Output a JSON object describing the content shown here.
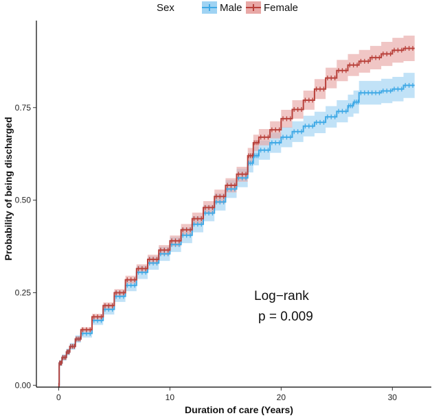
{
  "chart_data": {
    "type": "line",
    "subtype": "kaplan-meier cumulative incidence",
    "title": "",
    "xlabel": "Duration of care (Years)",
    "ylabel": "Probability of being discharged",
    "xlim": [
      -2,
      33.5
    ],
    "ylim": [
      -0.005,
      0.985
    ],
    "x_ticks": [
      0,
      10,
      20,
      30
    ],
    "x_tick_labels": [
      "0",
      "10",
      "20",
      "30"
    ],
    "y_ticks": [
      0.0,
      0.25,
      0.5,
      0.75
    ],
    "y_tick_labels": [
      "0.00",
      "0.25",
      "0.50",
      "0.75"
    ],
    "grid": false,
    "legend": {
      "title": "Sex",
      "position": "top",
      "entries": [
        "Male",
        "Female"
      ]
    },
    "annotations": {
      "line1": "Log−rank",
      "line2": "p = 0.009"
    },
    "series": [
      {
        "name": "Male",
        "color": "#3fa9e6",
        "band_color": "#9fd3f3",
        "x": [
          0,
          0.05,
          0.3,
          0.7,
          1.0,
          1.5,
          2,
          3,
          4,
          5,
          6,
          7,
          8,
          9,
          10,
          11,
          12,
          13,
          14,
          15,
          16,
          17,
          17.5,
          18,
          19,
          20,
          21,
          22,
          23,
          24,
          25,
          26,
          26.5,
          27,
          28,
          29,
          30,
          31,
          32
        ],
        "y": [
          0.0,
          0.06,
          0.075,
          0.09,
          0.105,
          0.125,
          0.14,
          0.175,
          0.205,
          0.24,
          0.27,
          0.305,
          0.33,
          0.355,
          0.38,
          0.405,
          0.435,
          0.465,
          0.495,
          0.53,
          0.56,
          0.6,
          0.62,
          0.635,
          0.655,
          0.67,
          0.685,
          0.7,
          0.71,
          0.725,
          0.74,
          0.755,
          0.765,
          0.79,
          0.79,
          0.795,
          0.8,
          0.81,
          0.81
        ],
        "ci_width": [
          0.0,
          0.008,
          0.008,
          0.009,
          0.009,
          0.01,
          0.011,
          0.012,
          0.014,
          0.015,
          0.016,
          0.018,
          0.018,
          0.019,
          0.02,
          0.021,
          0.022,
          0.022,
          0.023,
          0.024,
          0.025,
          0.025,
          0.026,
          0.026,
          0.027,
          0.027,
          0.028,
          0.028,
          0.029,
          0.029,
          0.03,
          0.03,
          0.031,
          0.032,
          0.032,
          0.033,
          0.033,
          0.034,
          0.034
        ]
      },
      {
        "name": "Female",
        "color": "#b8403a",
        "band_color": "#e8a8a6",
        "x": [
          0,
          0.05,
          0.3,
          0.7,
          1.0,
          1.5,
          2,
          3,
          4,
          5,
          6,
          7,
          8,
          9,
          10,
          11,
          12,
          13,
          14,
          15,
          16,
          17,
          17.5,
          18,
          19,
          20,
          21,
          22,
          23,
          24,
          25,
          26,
          27,
          28,
          29,
          30,
          31,
          32
        ],
        "y": [
          0.0,
          0.06,
          0.075,
          0.09,
          0.105,
          0.125,
          0.15,
          0.185,
          0.215,
          0.25,
          0.285,
          0.315,
          0.34,
          0.365,
          0.39,
          0.42,
          0.45,
          0.48,
          0.51,
          0.54,
          0.57,
          0.62,
          0.655,
          0.67,
          0.69,
          0.72,
          0.745,
          0.77,
          0.8,
          0.83,
          0.85,
          0.865,
          0.875,
          0.885,
          0.895,
          0.905,
          0.91,
          0.91
        ]
      }
    ]
  }
}
